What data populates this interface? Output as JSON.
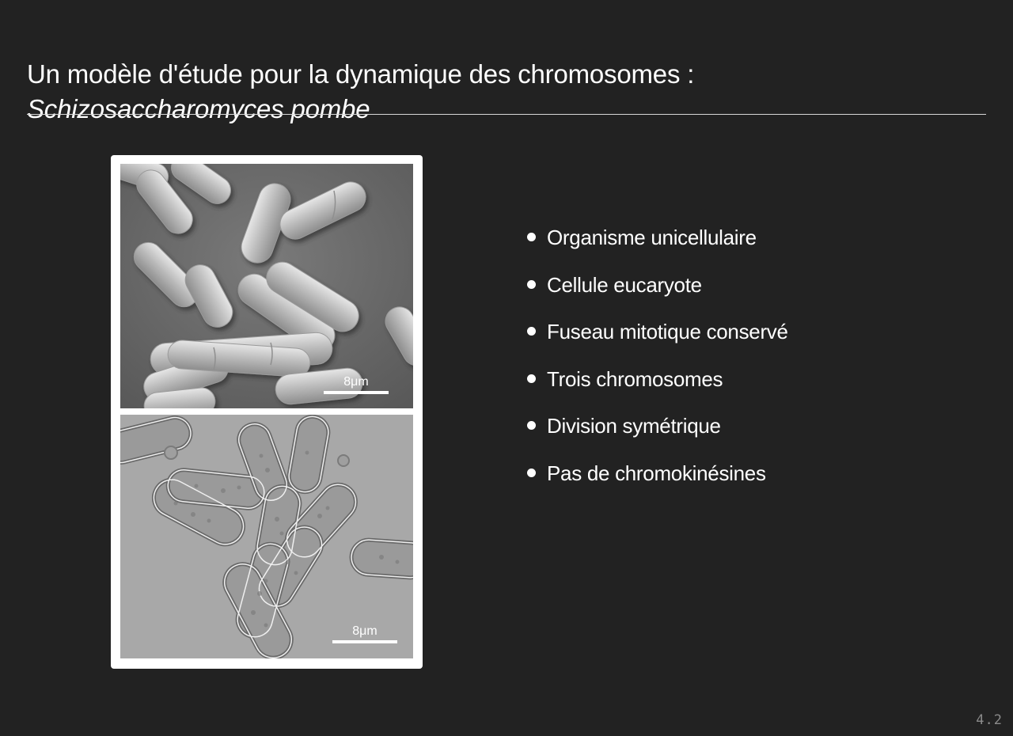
{
  "slide": {
    "title_line1": "Un modèle d'étude pour la dynamique des chromosomes :",
    "title_line2": "Schizosaccharomyces pombe",
    "bullets": [
      "Organisme unicellulaire",
      "Cellule eucaryote",
      "Fuseau mitotique conservé",
      "Trois chromosomes",
      "Division symétrique",
      "Pas de chromokinésines"
    ],
    "slide_number": "4.2"
  },
  "figure": {
    "top_image": {
      "description_icon": "electron-micrograph-image",
      "scale_label": "8μm"
    },
    "bottom_image": {
      "description_icon": "light-micrograph-image",
      "scale_label": "8μm"
    }
  },
  "colors": {
    "background": "#222222",
    "text": "#ffffff",
    "rule": "#d8d8d8",
    "slide_number": "#8a8a8a"
  }
}
